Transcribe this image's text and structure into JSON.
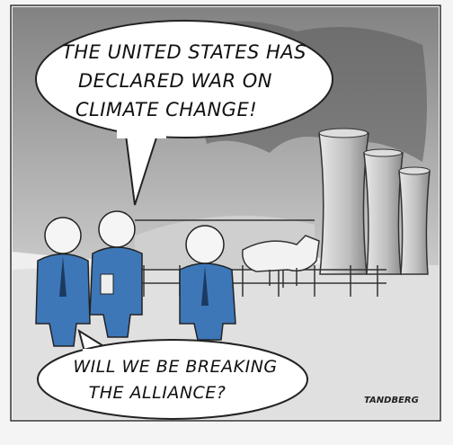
{
  "speech_bubbles": [
    {
      "lines": [
        "THE UNITED STATES HAS",
        "DECLARED WAR ON",
        "CLIMATE CHANGE!"
      ]
    },
    {
      "lines": [
        "WILL WE BE BREAKING",
        "THE ALLIANCE?"
      ]
    }
  ],
  "signature": "TANDBERG"
}
